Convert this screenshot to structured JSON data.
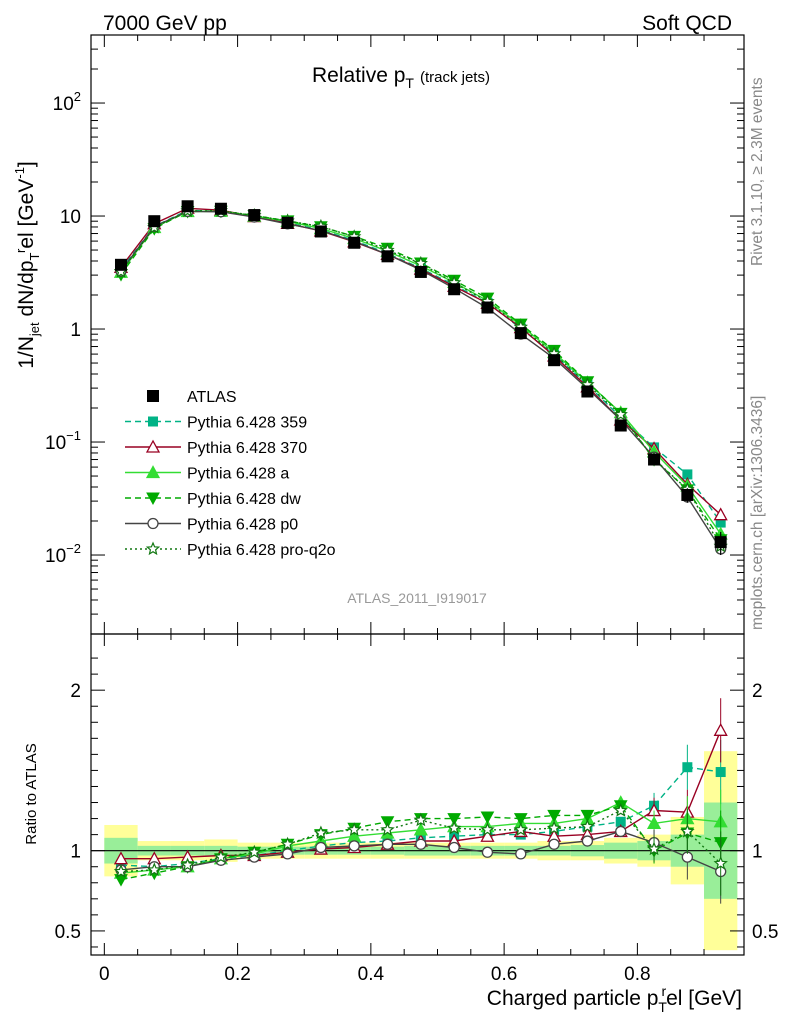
{
  "header": {
    "left": "7000 GeV pp",
    "right": "Soft QCD"
  },
  "side_text": {
    "rivet": "Rivet 3.1.10, ≥ 2.3M events",
    "mcplots": "mcplots.cern.ch [arXiv:1306.3436]"
  },
  "chart_data": {
    "type": "line",
    "title": "Relative p",
    "title_sub": "T",
    "title_suffix": "(track jets)",
    "analysis_tag": "ATLAS_2011_I919017",
    "ylabel_parts": [
      "1/N",
      "jet",
      " dN/dp",
      "T",
      "r",
      "el [GeV",
      "-1",
      "]"
    ],
    "xlabel": "Charged particle p",
    "xlabel_sub": "T",
    "xlabel_sup": "r",
    "xlabel_suffix": "el [GeV]",
    "ratio_ylabel": "Ratio to ATLAS",
    "xlim": [
      -0.02,
      0.96
    ],
    "ylim": [
      0.002,
      400
    ],
    "yscale": "log",
    "ratio_ylim": [
      0.35,
      2.35
    ],
    "x_ticks": [
      "0",
      "0.2",
      "0.4",
      "0.6",
      "0.8"
    ],
    "x_tick_values": [
      0,
      0.2,
      0.4,
      0.6,
      0.8
    ],
    "y_ticks": [
      {
        "base": "10",
        "exp": "2",
        "value": 100
      },
      {
        "base": "10",
        "exp": "",
        "value": 10
      },
      {
        "base": "1",
        "exp": "",
        "value": 1
      },
      {
        "base": "10",
        "exp": "−1",
        "value": 0.1
      },
      {
        "base": "10",
        "exp": "−2",
        "value": 0.01
      }
    ],
    "ratio_ticks": [
      {
        "label": "2",
        "value": 2
      },
      {
        "label": "1",
        "value": 1
      },
      {
        "label": "0.5",
        "value": 0.5
      }
    ],
    "x": [
      0.025,
      0.075,
      0.125,
      0.175,
      0.225,
      0.275,
      0.325,
      0.375,
      0.425,
      0.475,
      0.525,
      0.575,
      0.625,
      0.675,
      0.725,
      0.775,
      0.825,
      0.875,
      0.925
    ],
    "data": {
      "name": "ATLAS",
      "values": [
        3.7,
        9.0,
        12.2,
        11.6,
        10.2,
        8.7,
        7.3,
        5.8,
        4.4,
        3.2,
        2.25,
        1.55,
        0.92,
        0.53,
        0.28,
        0.14,
        0.07,
        0.034,
        0.013
      ],
      "err_lo": [
        0.17,
        0.35,
        0.4,
        0.35,
        0.3,
        0.25,
        0.2,
        0.16,
        0.12,
        0.09,
        0.06,
        0.05,
        0.03,
        0.02,
        0.012,
        0.008,
        0.005,
        0.005,
        0.003
      ],
      "err_hi": [
        0.17,
        0.35,
        0.4,
        0.35,
        0.3,
        0.25,
        0.2,
        0.16,
        0.12,
        0.09,
        0.06,
        0.05,
        0.03,
        0.02,
        0.012,
        0.008,
        0.005,
        0.005,
        0.003
      ],
      "band_yellow": [
        0.16,
        0.06,
        0.06,
        0.07,
        0.05,
        0.05,
        0.05,
        0.05,
        0.05,
        0.05,
        0.05,
        0.05,
        0.05,
        0.06,
        0.06,
        0.08,
        0.1,
        0.21,
        0.62
      ],
      "band_green": [
        0.08,
        0.03,
        0.03,
        0.03,
        0.025,
        0.025,
        0.025,
        0.025,
        0.025,
        0.03,
        0.03,
        0.03,
        0.03,
        0.03,
        0.035,
        0.05,
        0.06,
        0.1,
        0.3
      ]
    },
    "series": [
      {
        "name": "Pythia 6.428 359",
        "color": "#00b386",
        "marker": "square",
        "dash": "6,4",
        "ratio": [
          0.91,
          0.9,
          0.92,
          0.95,
          0.97,
          1.0,
          1.03,
          1.05,
          1.06,
          1.08,
          1.09,
          1.1,
          1.1,
          1.12,
          1.15,
          1.18,
          1.28,
          1.52,
          1.49
        ]
      },
      {
        "name": "Pythia 6.428 370",
        "color": "#990022",
        "marker": "triangle-open",
        "dash": "",
        "ratio": [
          0.95,
          0.95,
          0.96,
          0.97,
          0.97,
          0.99,
          1.01,
          1.02,
          1.04,
          1.06,
          1.06,
          1.09,
          1.12,
          1.09,
          1.1,
          1.12,
          1.25,
          1.24,
          1.75
        ]
      },
      {
        "name": "Pythia 6.428 a",
        "color": "#33dd33",
        "marker": "triangle",
        "dash": "",
        "ratio": [
          0.86,
          0.88,
          0.9,
          0.95,
          0.98,
          1.03,
          1.06,
          1.09,
          1.11,
          1.13,
          1.15,
          1.15,
          1.17,
          1.17,
          1.2,
          1.3,
          1.17,
          1.2,
          1.18
        ]
      },
      {
        "name": "Pythia 6.428 dw",
        "color": "#00aa00",
        "marker": "triangle-down",
        "dash": "6,4",
        "ratio": [
          0.82,
          0.86,
          0.9,
          0.95,
          0.99,
          1.04,
          1.1,
          1.14,
          1.18,
          1.2,
          1.2,
          1.21,
          1.2,
          1.22,
          1.22,
          1.28,
          1.0,
          1.11,
          1.05
        ]
      },
      {
        "name": "Pythia 6.428 p0",
        "color": "#444444",
        "marker": "circle-open",
        "dash": "",
        "ratio": [
          0.88,
          0.9,
          0.9,
          0.94,
          0.96,
          0.98,
          1.02,
          1.03,
          1.04,
          1.04,
          1.02,
          0.99,
          0.98,
          1.04,
          1.06,
          1.12,
          1.05,
          0.96,
          0.87
        ]
      },
      {
        "name": "Pythia 6.428 pro-q2o",
        "color": "#117711",
        "marker": "star-open",
        "dash": "2,3",
        "ratio": [
          0.87,
          0.88,
          0.91,
          0.96,
          0.99,
          1.04,
          1.11,
          1.13,
          1.13,
          1.19,
          1.14,
          1.13,
          1.13,
          1.14,
          1.15,
          1.25,
          1.01,
          1.12,
          0.92
        ]
      }
    ]
  }
}
